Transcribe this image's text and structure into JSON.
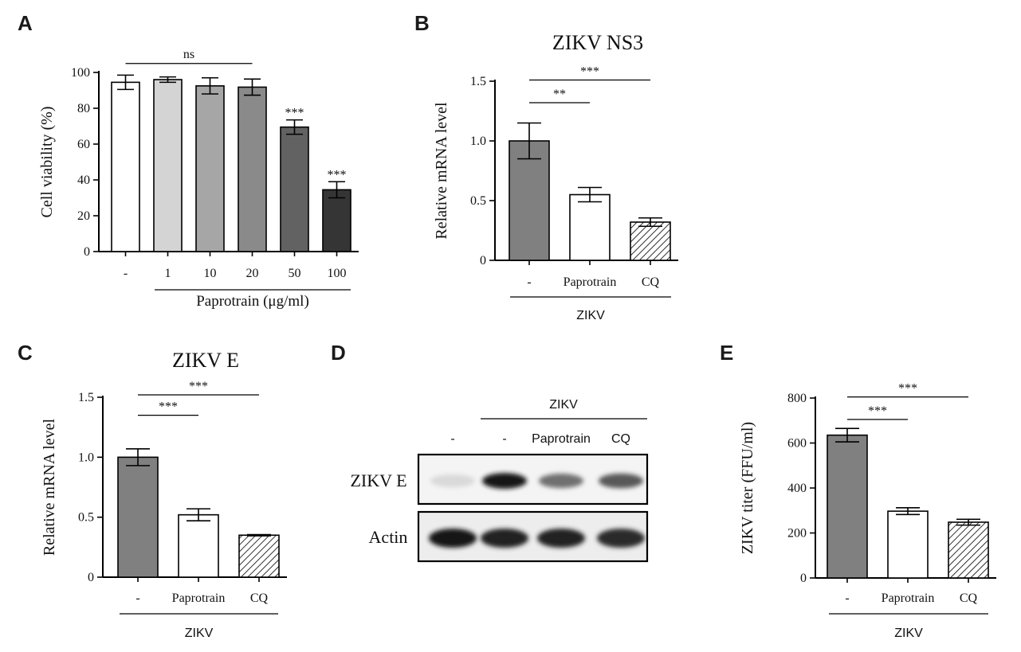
{
  "chart_data": [
    {
      "panel": "A",
      "type": "bar",
      "title": "",
      "ylabel": "Cell viability (%)",
      "xlabel": "Paprotrain (μg/ml)",
      "ylim": [
        0,
        100
      ],
      "yticks": [
        "0",
        "20",
        "40",
        "60",
        "80",
        "100"
      ],
      "categories": [
        "-",
        "1",
        "10",
        "20",
        "50",
        "100"
      ],
      "values": [
        94.5,
        96,
        92.5,
        91.8,
        69.5,
        34.5
      ],
      "errors": [
        4,
        1.5,
        4.5,
        4.5,
        4,
        4.5
      ],
      "bar_colors": [
        "#ffffff",
        "#d4d4d4",
        "#a6a6a6",
        "#8a8a8a",
        "#626262",
        "#353535"
      ],
      "annotations": [
        {
          "text": "ns",
          "from": 0,
          "to": 3,
          "level": 105
        },
        {
          "text": "***",
          "bar": 4
        },
        {
          "text": "***",
          "bar": 5
        }
      ]
    },
    {
      "panel": "B",
      "type": "bar",
      "title": "ZIKV NS3",
      "ylabel": "Relative mRNA level",
      "xlabel": "ZIKV",
      "ylim": [
        0,
        1.5
      ],
      "yticks": [
        "0",
        "0.5",
        "1.0",
        "1.5"
      ],
      "categories": [
        "-",
        "Paprotrain",
        "CQ"
      ],
      "values": [
        1.0,
        0.55,
        0.32
      ],
      "errors": [
        0.15,
        0.06,
        0.035
      ],
      "bar_colors": [
        "#808080",
        "#ffffff",
        "hatch"
      ],
      "annotations": [
        {
          "text": "**",
          "from": 0,
          "to": 1,
          "level": 1.32
        },
        {
          "text": "***",
          "from": 0,
          "to": 2,
          "level": 1.51
        }
      ]
    },
    {
      "panel": "C",
      "type": "bar",
      "title": "ZIKV E",
      "ylabel": "Relative mRNA level",
      "xlabel": "ZIKV",
      "ylim": [
        0,
        1.5
      ],
      "yticks": [
        "0",
        "0.5",
        "1.0",
        "1.5"
      ],
      "categories": [
        "-",
        "Paprotrain",
        "CQ"
      ],
      "values": [
        1.0,
        0.52,
        0.35
      ],
      "errors": [
        0.07,
        0.05,
        0.005
      ],
      "bar_colors": [
        "#808080",
        "#ffffff",
        "hatch"
      ],
      "annotations": [
        {
          "text": "***",
          "from": 0,
          "to": 1,
          "level": 1.35
        },
        {
          "text": "***",
          "from": 0,
          "to": 2,
          "level": 1.52
        }
      ]
    },
    {
      "panel": "E",
      "type": "bar",
      "title": "",
      "ylabel": "ZIKV titer (FFU/ml)",
      "xlabel": "ZIKV",
      "ylim": [
        0,
        800
      ],
      "yticks": [
        "0",
        "200",
        "400",
        "600",
        "800"
      ],
      "categories": [
        "-",
        "Paprotrain",
        "CQ"
      ],
      "values": [
        635,
        297,
        248
      ],
      "errors": [
        30,
        15,
        13
      ],
      "bar_colors": [
        "#808080",
        "#ffffff",
        "hatch"
      ],
      "annotations": [
        {
          "text": "***",
          "from": 0,
          "to": 1,
          "level": 705
        },
        {
          "text": "***",
          "from": 0,
          "to": 2,
          "level": 805
        }
      ]
    }
  ],
  "blot": {
    "panel": "D",
    "group_label": "ZIKV",
    "lanes": [
      "-",
      "-",
      "Paprotrain",
      "CQ"
    ],
    "rows": [
      {
        "label": "ZIKV E",
        "intensities": [
          0.08,
          0.95,
          0.55,
          0.65
        ]
      },
      {
        "label": "Actin",
        "intensities": [
          0.95,
          0.9,
          0.9,
          0.85
        ]
      }
    ]
  }
}
